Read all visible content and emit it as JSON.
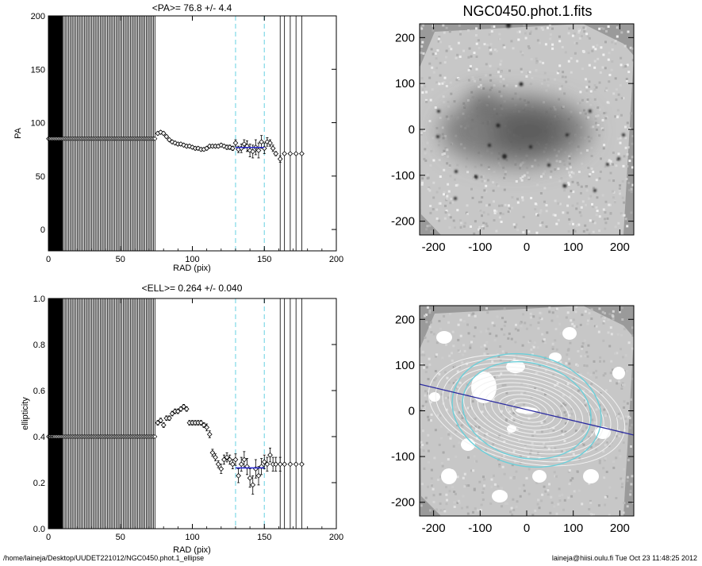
{
  "footer": {
    "path": "/home/laineja/Desktop/UUDET221012/NGC0450.phot.1_ellipse",
    "user_stamp": "laineja@hiisi.oulu.fi  Tue Oct 23 11:48:25 2012"
  },
  "chart_data": [
    {
      "type": "scatter",
      "title": "<PA>=  76.8 +/-   4.4",
      "xlabel": "RAD (pix)",
      "ylabel": "PA",
      "xlim": [
        0,
        200
      ],
      "ylim": [
        -20,
        200
      ],
      "xticks": [
        0,
        50,
        100,
        150,
        200
      ],
      "yticks": [
        0,
        50,
        100,
        150,
        200
      ],
      "grid": false,
      "vertical_lines_radii": [
        1,
        2,
        3,
        4,
        5,
        6,
        7,
        8,
        9,
        10,
        11,
        12,
        13,
        14,
        15,
        16,
        17,
        18,
        19,
        20,
        21,
        22,
        23,
        24,
        25,
        26,
        27,
        28,
        29,
        30,
        31,
        32,
        33,
        34,
        35,
        36,
        37,
        38,
        39,
        40,
        41,
        42,
        43,
        44,
        45,
        46,
        47,
        48,
        49,
        50,
        51,
        52,
        53,
        54,
        55,
        56,
        57,
        58,
        59,
        60,
        61,
        62,
        63,
        64,
        65,
        66,
        67,
        68,
        69,
        70,
        71,
        72,
        73,
        74,
        161,
        164,
        168,
        172,
        176
      ],
      "dashed_lines_x": [
        130,
        150
      ],
      "mean_segment": {
        "x": [
          130,
          150
        ],
        "y": 76.8
      },
      "fixed_points": {
        "x_start": 0,
        "x_end": 74,
        "y": 85
      },
      "points": {
        "x": [
          76,
          78,
          80,
          82,
          84,
          86,
          88,
          90,
          92,
          94,
          96,
          98,
          100,
          102,
          104,
          106,
          108,
          110,
          112,
          114,
          116,
          118,
          120,
          122,
          124,
          126,
          128,
          130,
          132,
          134,
          136,
          138,
          140,
          142,
          144,
          146,
          148,
          150,
          152,
          154,
          156,
          158,
          161,
          164,
          168,
          172,
          176
        ],
        "y": [
          90,
          91,
          90,
          87,
          84,
          82,
          81,
          80,
          80,
          79,
          78,
          78,
          77,
          76,
          76,
          75,
          75,
          76,
          78,
          78,
          78,
          78,
          79,
          78,
          77,
          77,
          76,
          81,
          75,
          76,
          80,
          78,
          74,
          73,
          77,
          74,
          82,
          76,
          82,
          81,
          76,
          71,
          66,
          71,
          71,
          71,
          71
        ],
        "err": [
          1.5,
          1.5,
          1.5,
          1.5,
          1.5,
          1.5,
          1.5,
          1.5,
          1.5,
          1.5,
          1.5,
          1.5,
          1.5,
          1.5,
          1.5,
          1.5,
          1.5,
          1.5,
          1.5,
          1.5,
          1.5,
          1.5,
          1.5,
          1.5,
          2,
          2,
          2,
          3,
          3,
          4,
          4,
          5,
          6,
          6,
          7,
          7,
          6,
          5,
          4,
          3,
          3,
          2,
          3,
          0,
          0,
          0,
          0
        ]
      }
    },
    {
      "type": "heatmap",
      "title": "NGC0450.phot.1.fits",
      "xlim": [
        -230,
        230
      ],
      "ylim": [
        -230,
        230
      ],
      "xticks": [
        -200,
        -100,
        0,
        100,
        200
      ],
      "yticks": [
        -200,
        -100,
        0,
        100,
        200
      ],
      "colormap": "greyscale"
    },
    {
      "type": "scatter",
      "title": "<ELL>= 0.264 +/-  0.040",
      "xlabel": "RAD (pix)",
      "ylabel": "ellipticity",
      "xlim": [
        0,
        200
      ],
      "ylim": [
        0,
        1
      ],
      "xticks": [
        0,
        50,
        100,
        150,
        200
      ],
      "yticks": [
        0.0,
        0.2,
        0.4,
        0.6,
        0.8,
        1.0
      ],
      "xtick_labels": [
        "0",
        "50",
        "100",
        "150",
        "200"
      ],
      "ytick_labels": [
        "0.0",
        "0.2",
        "0.4",
        "0.6",
        "0.8",
        "1.0"
      ],
      "grid": false,
      "vertical_lines_radii": [
        1,
        2,
        3,
        4,
        5,
        6,
        7,
        8,
        9,
        10,
        11,
        12,
        13,
        14,
        15,
        16,
        17,
        18,
        19,
        20,
        21,
        22,
        23,
        24,
        25,
        26,
        27,
        28,
        29,
        30,
        31,
        32,
        33,
        34,
        35,
        36,
        37,
        38,
        39,
        40,
        41,
        42,
        43,
        44,
        45,
        46,
        47,
        48,
        49,
        50,
        51,
        52,
        53,
        54,
        55,
        56,
        57,
        58,
        59,
        60,
        61,
        62,
        63,
        64,
        65,
        66,
        67,
        68,
        69,
        70,
        71,
        72,
        73,
        74,
        161,
        164,
        168,
        172,
        176
      ],
      "dashed_lines_x": [
        130,
        150
      ],
      "mean_segment": {
        "x": [
          130,
          150
        ],
        "y": 0.264
      },
      "fixed_points": {
        "x_start": 0,
        "x_end": 74,
        "y": 0.4
      },
      "points": {
        "x": [
          76,
          78,
          80,
          82,
          84,
          86,
          88,
          90,
          92,
          94,
          96,
          98,
          100,
          102,
          104,
          106,
          108,
          110,
          112,
          114,
          116,
          118,
          120,
          122,
          124,
          126,
          128,
          130,
          132,
          134,
          136,
          138,
          140,
          142,
          144,
          146,
          148,
          150,
          152,
          154,
          156,
          158,
          161,
          164,
          168,
          172,
          176
        ],
        "y": [
          0.46,
          0.47,
          0.45,
          0.48,
          0.48,
          0.5,
          0.51,
          0.51,
          0.52,
          0.53,
          0.52,
          0.46,
          0.46,
          0.46,
          0.46,
          0.46,
          0.45,
          0.44,
          0.41,
          0.33,
          0.31,
          0.28,
          0.26,
          0.3,
          0.31,
          0.3,
          0.28,
          0.3,
          0.23,
          0.28,
          0.3,
          0.27,
          0.22,
          0.19,
          0.26,
          0.23,
          0.27,
          0.29,
          0.28,
          0.32,
          0.28,
          0.28,
          0.28,
          0.28,
          0.28,
          0.28,
          0.28
        ],
        "err": [
          0.01,
          0.01,
          0.01,
          0.01,
          0.01,
          0.01,
          0.01,
          0.01,
          0.01,
          0.01,
          0.01,
          0.01,
          0.01,
          0.01,
          0.01,
          0.01,
          0.01,
          0.015,
          0.015,
          0.015,
          0.015,
          0.015,
          0.02,
          0.02,
          0.02,
          0.02,
          0.02,
          0.025,
          0.03,
          0.03,
          0.035,
          0.035,
          0.04,
          0.04,
          0.04,
          0.04,
          0.035,
          0.03,
          0.03,
          0.03,
          0.03,
          0.03,
          0.03,
          0.0,
          0.0,
          0.0,
          0.0
        ]
      }
    },
    {
      "type": "heatmap",
      "title": "",
      "xlim": [
        -230,
        230
      ],
      "ylim": [
        -230,
        230
      ],
      "xticks": [
        -200,
        -100,
        0,
        100,
        200
      ],
      "yticks": [
        -200,
        -100,
        0,
        100,
        200
      ],
      "colormap": "greyscale",
      "overlay": {
        "ellipse_count": 14,
        "major_axis_pa_deg": 76.8,
        "ellipticity": 0.264
      }
    }
  ]
}
